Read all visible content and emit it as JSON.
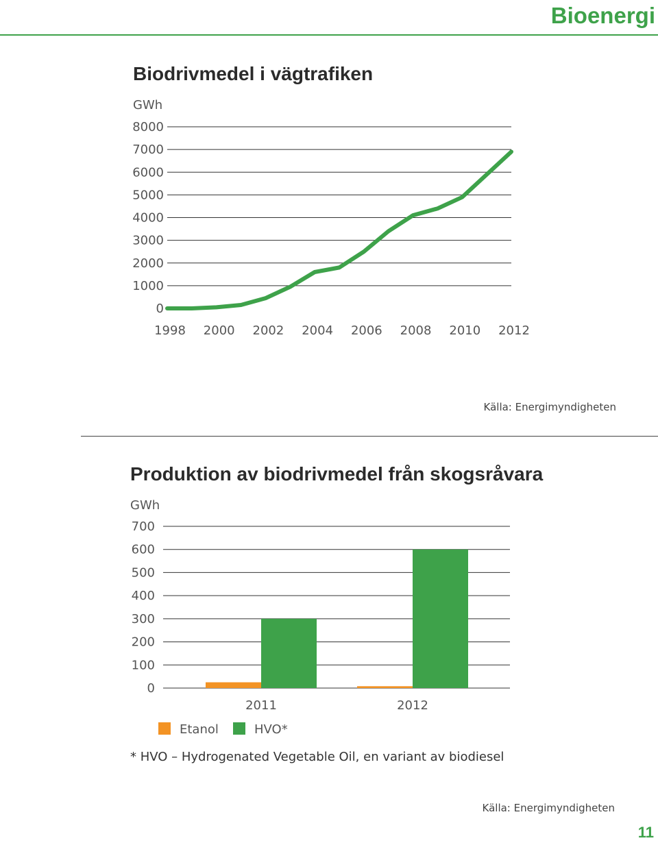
{
  "header": {
    "title": "Bioenergi"
  },
  "page_number": "11",
  "footnote": "* HVO – Hydrogenated Vegetable Oil, en variant av biodiesel",
  "colors": {
    "accent": "#3ea24a",
    "etanol": "#f39324",
    "hvo": "#3ea24a"
  },
  "chart_data": [
    {
      "type": "line",
      "title": "Biodrivmedel i vägtrafiken",
      "ylabel": "GWh",
      "source": "Källa: Energimyndigheten",
      "ylim": [
        0,
        8000
      ],
      "yticks": [
        0,
        1000,
        2000,
        3000,
        4000,
        5000,
        6000,
        7000,
        8000
      ],
      "xlim": [
        1998,
        2012
      ],
      "xticks": [
        1998,
        2000,
        2002,
        2004,
        2006,
        2008,
        2010,
        2012
      ],
      "grid": true,
      "series": [
        {
          "x": [
            1998,
            1999,
            2000,
            2001,
            2002,
            2003,
            2004,
            2005,
            2006,
            2007,
            2008,
            2009,
            2010,
            2011,
            2012
          ],
          "values": [
            0,
            0,
            50,
            150,
            450,
            950,
            1600,
            1800,
            2500,
            3400,
            4100,
            4400,
            4900,
            5900,
            6900
          ]
        }
      ]
    },
    {
      "type": "bar",
      "title": "Produktion av biodrivmedel från skogsråvara",
      "ylabel": "GWh",
      "source": "Källa: Energimyndigheten",
      "ylim": [
        0,
        700
      ],
      "yticks": [
        0,
        100,
        200,
        300,
        400,
        500,
        600,
        700
      ],
      "categories": [
        "2011",
        "2012"
      ],
      "grid": true,
      "legend": "bottom-left",
      "series": [
        {
          "name": "Etanol",
          "values": [
            25,
            8
          ]
        },
        {
          "name": "HVO*",
          "values": [
            300,
            600
          ]
        }
      ]
    }
  ]
}
